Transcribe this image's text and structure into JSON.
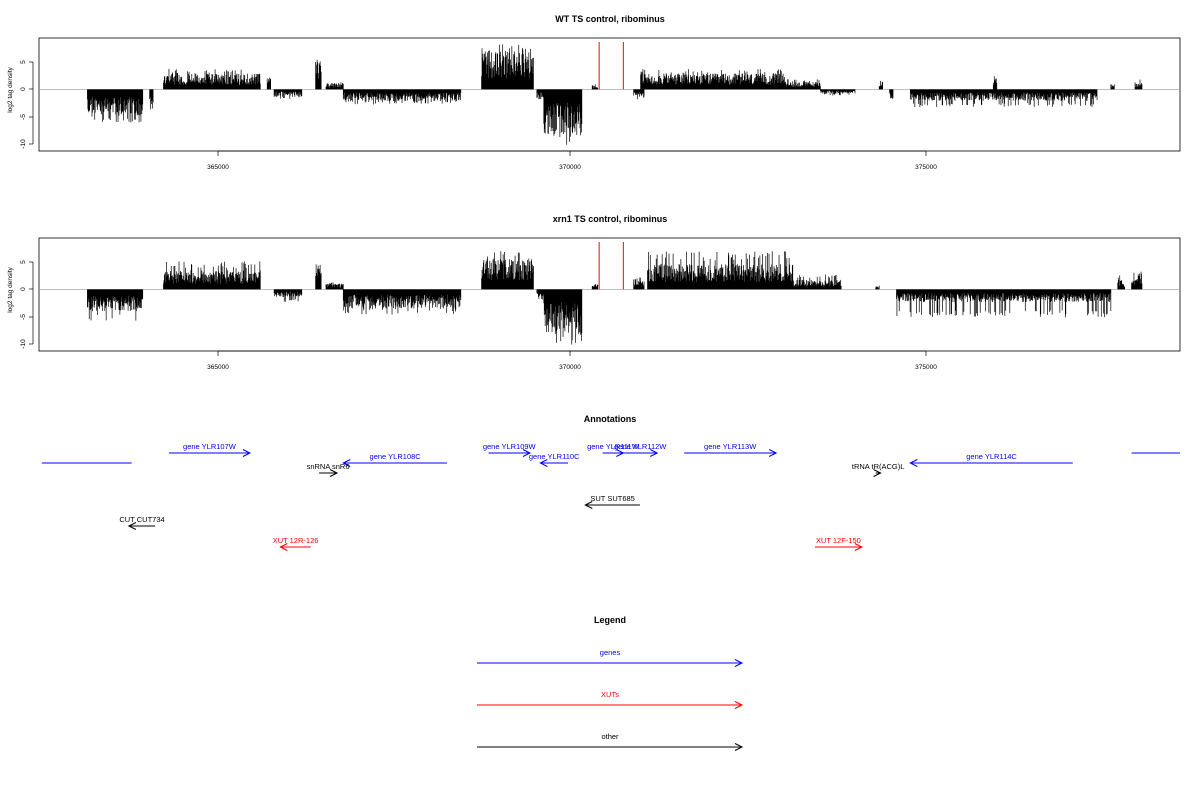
{
  "colors": {
    "genes": "#0000ff",
    "xuts": "#ff0000",
    "other": "#000000",
    "highlight": "#ff0000",
    "baseline": "#999999"
  },
  "panels": [
    {
      "title": "WT TS control, ribominus",
      "ylabel": "log2 tag density",
      "yticks": [
        "5",
        "0",
        "-5",
        "-10"
      ],
      "xticks": [
        "365000",
        "370000",
        "375000"
      ]
    },
    {
      "title": "xrn1 TS control, ribominus",
      "ylabel": "log2 tag density",
      "yticks": [
        "5",
        "0",
        "-5",
        "-10"
      ],
      "xticks": [
        "365000",
        "370000",
        "375000"
      ]
    }
  ],
  "annotations": {
    "title": "Annotations",
    "features": [
      {
        "label": "",
        "kind": "gene",
        "strand": "+",
        "start": 362340,
        "end": 363640,
        "row": 1,
        "show_head": false
      },
      {
        "label": "gene YLR107W",
        "kind": "gene",
        "strand": "+",
        "start": 364180,
        "end": 365350,
        "row": 0
      },
      {
        "label": "gene YLR108C",
        "kind": "gene",
        "strand": "-",
        "start": 366700,
        "end": 368200,
        "row": 1
      },
      {
        "label": "snRNA snR6",
        "kind": "other",
        "strand": "+",
        "start": 366350,
        "end": 366610,
        "row": 2
      },
      {
        "label": "gene YLR109W",
        "kind": "gene",
        "strand": "+",
        "start": 368800,
        "end": 369400,
        "row": 0
      },
      {
        "label": "gene YLR110C",
        "kind": "gene",
        "strand": "-",
        "start": 369550,
        "end": 369950,
        "row": 1
      },
      {
        "label": "gene YLR111W",
        "kind": "gene",
        "strand": "+",
        "start": 370450,
        "end": 370750,
        "row": 0
      },
      {
        "label": "gene YLR112W",
        "kind": "gene",
        "strand": "+",
        "start": 370750,
        "end": 371240,
        "row": 0
      },
      {
        "label": "gene YLR113W",
        "kind": "gene",
        "strand": "+",
        "start": 371630,
        "end": 372960,
        "row": 0
      },
      {
        "label": "tRNA tR(ACG)L",
        "kind": "other",
        "strand": "+",
        "start": 374400,
        "end": 374470,
        "row": 2
      },
      {
        "label": "gene YLR114C",
        "kind": "gene",
        "strand": "-",
        "start": 374900,
        "end": 377250,
        "row": 1
      },
      {
        "label": "",
        "kind": "gene",
        "strand": "+",
        "start": 378100,
        "end": 378800,
        "row": 0,
        "show_head": false
      },
      {
        "label": "SUT SUT685",
        "kind": "other",
        "strand": "-",
        "start": 370200,
        "end": 370990,
        "row": 4
      },
      {
        "label": "CUT CUT734",
        "kind": "other",
        "strand": "-",
        "start": 363600,
        "end": 363980,
        "row": 5
      },
      {
        "label": "XUT 12R-126",
        "kind": "xut",
        "strand": "-",
        "start": 365790,
        "end": 366230,
        "row": 6
      },
      {
        "label": "XUT 12F-150",
        "kind": "xut",
        "strand": "+",
        "start": 373520,
        "end": 374200,
        "row": 6
      }
    ]
  },
  "legend": {
    "title": "Legend",
    "items": [
      {
        "label": "genes",
        "kind": "gene"
      },
      {
        "label": "XUTs",
        "kind": "xut"
      },
      {
        "label": "other",
        "kind": "other"
      }
    ]
  },
  "chart_data": [
    {
      "type": "bar",
      "title": "WT TS control, ribominus",
      "ylabel": "log2 tag density",
      "xlim": [
        362300,
        378800
      ],
      "ylim": [
        -11.5,
        9.5
      ],
      "x_ticks": [
        365000,
        370000,
        375000
      ],
      "y_ticks": [
        5,
        0,
        -5,
        -10
      ],
      "highlight_x": [
        370400,
        370750
      ],
      "segments": [
        {
          "start": 363000,
          "end": 363800,
          "sign": -1,
          "level": 4,
          "peak": 6.5
        },
        {
          "start": 363750,
          "end": 363800,
          "sign": -1,
          "level": 2.5,
          "peak": 3.5
        },
        {
          "start": 363900,
          "end": 363950,
          "sign": -1,
          "level": 3,
          "peak": 4
        },
        {
          "start": 364100,
          "end": 365500,
          "sign": 1,
          "level": 2.5,
          "peak": 4
        },
        {
          "start": 365600,
          "end": 365650,
          "sign": 1,
          "level": 2,
          "peak": 2.5
        },
        {
          "start": 365700,
          "end": 366100,
          "sign": -1,
          "level": 1.2,
          "peak": 2
        },
        {
          "start": 366300,
          "end": 366380,
          "sign": 1,
          "level": 5,
          "peak": 6
        },
        {
          "start": 366450,
          "end": 366700,
          "sign": 1,
          "level": 1,
          "peak": 1.5
        },
        {
          "start": 366700,
          "end": 368400,
          "sign": -1,
          "level": 1.8,
          "peak": 3
        },
        {
          "start": 368700,
          "end": 369450,
          "sign": 1,
          "level": 6,
          "peak": 9
        },
        {
          "start": 369500,
          "end": 369600,
          "sign": -1,
          "level": 1.5,
          "peak": 2
        },
        {
          "start": 369600,
          "end": 370150,
          "sign": -1,
          "level": 7.5,
          "peak": 11
        },
        {
          "start": 370300,
          "end": 370380,
          "sign": 1,
          "level": 0.6,
          "peak": 1
        },
        {
          "start": 370900,
          "end": 371050,
          "sign": -1,
          "level": 1.2,
          "peak": 2
        },
        {
          "start": 371000,
          "end": 373100,
          "sign": 1,
          "level": 2.5,
          "peak": 4
        },
        {
          "start": 373100,
          "end": 373600,
          "sign": 1,
          "level": 1.2,
          "peak": 2
        },
        {
          "start": 373600,
          "end": 374100,
          "sign": -1,
          "level": 0.7,
          "peak": 1.2
        },
        {
          "start": 374450,
          "end": 374500,
          "sign": 1,
          "level": 1.5,
          "peak": 2
        },
        {
          "start": 374600,
          "end": 374650,
          "sign": -1,
          "level": 1.5,
          "peak": 2
        },
        {
          "start": 374900,
          "end": 377600,
          "sign": -1,
          "level": 1.8,
          "peak": 3.5
        },
        {
          "start": 376100,
          "end": 376150,
          "sign": 1,
          "level": 2,
          "peak": 2.7
        },
        {
          "start": 377800,
          "end": 377850,
          "sign": 1,
          "level": 0.8,
          "peak": 1
        },
        {
          "start": 378150,
          "end": 378250,
          "sign": 1,
          "level": 1.2,
          "peak": 2
        }
      ]
    },
    {
      "type": "bar",
      "title": "xrn1 TS control, ribominus",
      "ylabel": "log2 tag density",
      "xlim": [
        362300,
        378800
      ],
      "ylim": [
        -11.5,
        9.5
      ],
      "x_ticks": [
        365000,
        370000,
        375000
      ],
      "y_ticks": [
        5,
        0,
        -5,
        -10
      ],
      "highlight_x": [
        370400,
        370750
      ],
      "segments": [
        {
          "start": 363000,
          "end": 363800,
          "sign": -1,
          "level": 3.5,
          "peak": 6.5
        },
        {
          "start": 364100,
          "end": 365500,
          "sign": 1,
          "level": 3,
          "peak": 5.5
        },
        {
          "start": 365700,
          "end": 366100,
          "sign": -1,
          "level": 1.2,
          "peak": 2.5
        },
        {
          "start": 366300,
          "end": 366380,
          "sign": 1,
          "level": 4,
          "peak": 5
        },
        {
          "start": 366450,
          "end": 366700,
          "sign": 1,
          "level": 1,
          "peak": 1.5
        },
        {
          "start": 366700,
          "end": 368400,
          "sign": -1,
          "level": 3,
          "peak": 5
        },
        {
          "start": 368700,
          "end": 369450,
          "sign": 1,
          "level": 5,
          "peak": 7.5
        },
        {
          "start": 369500,
          "end": 369600,
          "sign": -1,
          "level": 1.5,
          "peak": 2
        },
        {
          "start": 369600,
          "end": 370150,
          "sign": -1,
          "level": 7,
          "peak": 11
        },
        {
          "start": 370300,
          "end": 370380,
          "sign": 1,
          "level": 0.8,
          "peak": 1.2
        },
        {
          "start": 370900,
          "end": 371050,
          "sign": 1,
          "level": 1.5,
          "peak": 2.5
        },
        {
          "start": 371100,
          "end": 373200,
          "sign": 1,
          "level": 4,
          "peak": 7.5
        },
        {
          "start": 373200,
          "end": 373900,
          "sign": 1,
          "level": 1.5,
          "peak": 3
        },
        {
          "start": 374400,
          "end": 374450,
          "sign": 1,
          "level": 0.5,
          "peak": 0.8
        },
        {
          "start": 374700,
          "end": 377800,
          "sign": -1,
          "level": 2,
          "peak": 5.5
        },
        {
          "start": 377900,
          "end": 378000,
          "sign": 1,
          "level": 1.5,
          "peak": 3
        },
        {
          "start": 378100,
          "end": 378250,
          "sign": 1,
          "level": 2.5,
          "peak": 3.5
        }
      ]
    }
  ]
}
